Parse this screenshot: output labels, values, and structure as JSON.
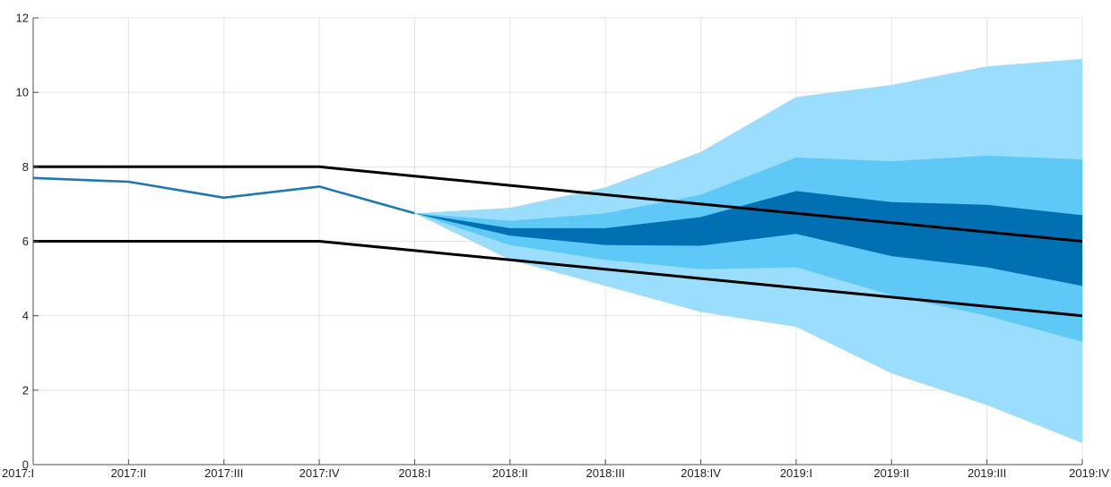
{
  "chart_data": {
    "type": "area",
    "title": "",
    "xlabel": "",
    "ylabel": "",
    "categories": [
      "2017:I",
      "2017:II",
      "2017:III",
      "2017:IV",
      "2018:I",
      "2018:II",
      "2018:III",
      "2018:IV",
      "2019:I",
      "2019:II",
      "2019:III",
      "2019:IV"
    ],
    "ylim": [
      0,
      12
    ],
    "yticks": [
      0,
      2,
      4,
      6,
      8,
      10,
      12
    ],
    "grid": true,
    "legend": "none",
    "series": [
      {
        "kind": "line",
        "color": "#1f78b4",
        "values": [
          7.7,
          7.6,
          7.17,
          7.47,
          6.75,
          null,
          null,
          null,
          null,
          null,
          null,
          null
        ]
      },
      {
        "kind": "line",
        "color": "#000000",
        "values": [
          8.0,
          8.0,
          8.0,
          8.0,
          7.75,
          7.5,
          7.25,
          7.0,
          6.75,
          6.5,
          6.25,
          6.0
        ]
      },
      {
        "kind": "line",
        "color": "#000000",
        "values": [
          6.0,
          6.0,
          6.0,
          6.0,
          5.75,
          5.5,
          5.25,
          5.0,
          4.75,
          4.5,
          4.25,
          4.0
        ]
      }
    ],
    "bands": [
      {
        "color": "#9bddfc",
        "upper": [
          null,
          null,
          null,
          null,
          6.75,
          6.9,
          7.45,
          8.4,
          9.88,
          10.2,
          10.7,
          10.9
        ],
        "lower": [
          null,
          null,
          null,
          null,
          6.75,
          5.5,
          4.8,
          4.1,
          3.7,
          2.45,
          1.6,
          0.58
        ]
      },
      {
        "color": "#5ec8f6",
        "upper": [
          null,
          null,
          null,
          null,
          6.75,
          6.55,
          6.75,
          7.25,
          8.25,
          8.15,
          8.3,
          8.2
        ],
        "lower": [
          null,
          null,
          null,
          null,
          6.75,
          5.9,
          5.5,
          5.25,
          5.3,
          4.55,
          4.0,
          3.3
        ]
      },
      {
        "color": "#0070b2",
        "upper": [
          null,
          null,
          null,
          null,
          6.75,
          6.35,
          6.35,
          6.65,
          7.35,
          7.05,
          6.98,
          6.7
        ],
        "lower": [
          null,
          null,
          null,
          null,
          6.75,
          6.15,
          5.9,
          5.88,
          6.2,
          5.6,
          5.3,
          4.8
        ]
      }
    ]
  }
}
